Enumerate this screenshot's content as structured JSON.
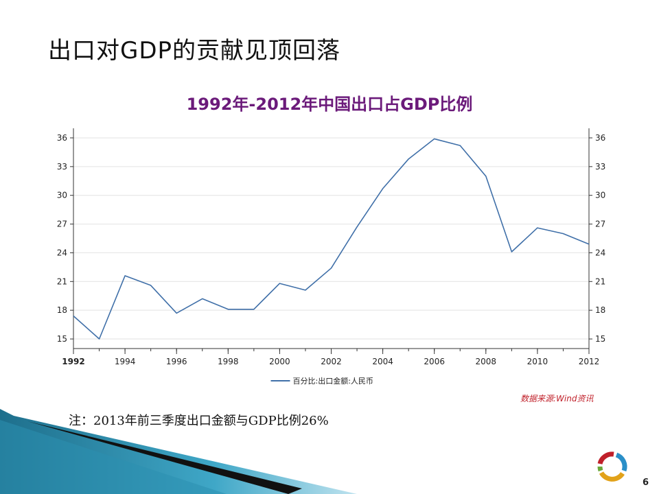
{
  "slide": {
    "title": "出口对GDP的贡献见顶回落",
    "note": "注：2013年前三季度出口金额与GDP比例26%",
    "source": "数据来源:Wind资讯",
    "page_number": "6"
  },
  "colors": {
    "line": "#3f6fa8",
    "title": "#6b1a7a",
    "source": "#c0202a"
  },
  "chart_data": {
    "type": "line",
    "title": "1992年-2012年中国出口占GDP比例",
    "xlabel": "",
    "ylabel": "",
    "x_ticks": [
      "1992",
      "1994",
      "1996",
      "1998",
      "2000",
      "2002",
      "2004",
      "2006",
      "2008",
      "2010",
      "2012"
    ],
    "y_ticks": [
      15,
      18,
      21,
      24,
      27,
      30,
      33,
      36
    ],
    "xlim": [
      1992,
      2012
    ],
    "ylim": [
      14,
      37
    ],
    "grid": "horizontal",
    "legend_position": "bottom-center",
    "secondary_y_axis": true,
    "series": [
      {
        "name": "百分比:出口金额:人民币",
        "x": [
          1992,
          1993,
          1994,
          1995,
          1996,
          1997,
          1998,
          1999,
          2000,
          2001,
          2002,
          2003,
          2004,
          2005,
          2006,
          2007,
          2008,
          2009,
          2010,
          2011,
          2012
        ],
        "values": [
          17.4,
          15.0,
          21.6,
          20.6,
          17.7,
          19.2,
          18.1,
          18.1,
          20.8,
          20.1,
          22.4,
          26.7,
          30.7,
          33.8,
          35.9,
          35.2,
          32.0,
          24.1,
          26.6,
          26.0,
          24.9
        ]
      }
    ]
  }
}
